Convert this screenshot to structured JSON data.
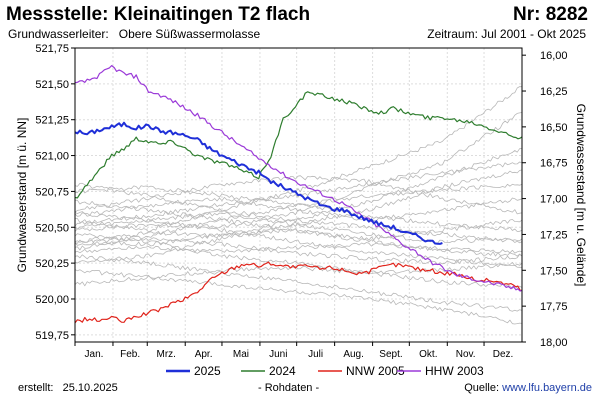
{
  "header": {
    "title": "Messstelle: Kleinaitingen T2 flach",
    "number": "Nr: 8282",
    "aquifer_label": "Grundwasserleiter:",
    "aquifer_value": "Obere Süßwassermolasse",
    "period": "Zeitraum: Jul 2001 - Okt 2025"
  },
  "footer": {
    "created_label": "erstellt:",
    "created_date": "25.10.2025",
    "data_note": "- Rohdaten -",
    "source_label": "Quelle:",
    "source_url": "www.lfu.bayern.de"
  },
  "colors": {
    "y2025": "#1f2fd8",
    "y2024": "#2e7d2e",
    "nnw": "#e0231b",
    "hhw": "#9b3ad8",
    "history": "#b8b8b8",
    "grid": "#dddddd"
  },
  "chart_data": {
    "type": "line",
    "xlabel": "",
    "ylabel": "Grundwasserstand [m ü. NN]",
    "ylabel_right": "Grundwasserstand [m u. Gelände]",
    "xlim": [
      0,
      365
    ],
    "ylim": [
      519.7,
      521.75
    ],
    "ylim_right": [
      18.0,
      15.95
    ],
    "yticks": [
      519.75,
      520.0,
      520.25,
      520.5,
      520.75,
      521.0,
      521.25,
      521.5,
      521.75
    ],
    "ytick_labels": [
      "519,75",
      "520,00",
      "520,25",
      "520,50",
      "520,75",
      "521,00",
      "521,25",
      "521,50",
      "521,75"
    ],
    "yticks_right": [
      16.0,
      16.25,
      16.5,
      16.75,
      17.0,
      17.25,
      17.5,
      17.75,
      18.0
    ],
    "ytick_right_labels": [
      "16,00",
      "16,25",
      "16,50",
      "16,75",
      "17,00",
      "17,25",
      "17,50",
      "17,75",
      "18,00"
    ],
    "month_labels": [
      "Jan.",
      "Feb.",
      "Mrz.",
      "Apr.",
      "Mai",
      "Juni",
      "Juli",
      "Aug.",
      "Sept.",
      "Okt.",
      "Nov.",
      "Dez."
    ],
    "grid": true,
    "legend_position": "bottom",
    "series": [
      {
        "name": "2025",
        "color_key": "y2025",
        "x": [
          0,
          10,
          20,
          30,
          40,
          50,
          60,
          70,
          80,
          90,
          100,
          110,
          120,
          130,
          140,
          150,
          160,
          170,
          180,
          190,
          200,
          210,
          220,
          230,
          240,
          250,
          260,
          270,
          280,
          290,
          300
        ],
        "y": [
          521.17,
          521.15,
          521.18,
          521.2,
          521.22,
          521.19,
          521.21,
          521.17,
          521.16,
          521.14,
          521.11,
          521.05,
          521.0,
          520.96,
          520.92,
          520.88,
          520.82,
          520.78,
          520.74,
          520.7,
          520.66,
          520.63,
          520.62,
          520.58,
          520.55,
          520.52,
          520.5,
          520.46,
          520.44,
          520.4,
          520.39
        ]
      },
      {
        "name": "2024",
        "color_key": "y2024",
        "x": [
          0,
          10,
          20,
          30,
          40,
          50,
          60,
          70,
          80,
          90,
          100,
          110,
          120,
          130,
          140,
          150,
          160,
          170,
          180,
          190,
          200,
          210,
          220,
          230,
          240,
          250,
          260,
          270,
          280,
          290,
          300,
          310,
          320,
          330,
          340,
          350,
          360,
          365
        ],
        "y": [
          520.7,
          520.8,
          520.9,
          521.0,
          521.05,
          521.12,
          521.1,
          521.08,
          521.1,
          521.05,
          521.0,
          520.97,
          520.95,
          520.92,
          520.88,
          520.85,
          521.0,
          521.25,
          521.35,
          521.44,
          521.42,
          521.4,
          521.38,
          521.35,
          521.32,
          521.3,
          521.33,
          521.3,
          521.28,
          521.26,
          521.27,
          521.25,
          521.24,
          521.22,
          521.19,
          521.16,
          521.13,
          521.13
        ]
      },
      {
        "name": "NNW 2005",
        "color_key": "nnw",
        "x": [
          0,
          10,
          20,
          30,
          40,
          50,
          60,
          70,
          80,
          90,
          100,
          110,
          120,
          130,
          140,
          150,
          160,
          170,
          180,
          190,
          200,
          210,
          220,
          230,
          240,
          250,
          260,
          270,
          280,
          290,
          300,
          310,
          320,
          330,
          340,
          350,
          360,
          365
        ],
        "y": [
          519.84,
          519.86,
          519.85,
          519.87,
          519.84,
          519.88,
          519.9,
          519.93,
          519.97,
          520.0,
          520.05,
          520.13,
          520.18,
          520.22,
          520.25,
          520.23,
          520.25,
          520.23,
          520.22,
          520.23,
          520.21,
          520.22,
          520.2,
          520.18,
          520.19,
          520.22,
          520.24,
          520.23,
          520.21,
          520.2,
          520.18,
          520.18,
          520.15,
          520.13,
          520.13,
          520.11,
          520.09,
          520.06
        ]
      },
      {
        "name": "HHW 2003",
        "color_key": "hhw",
        "x": [
          0,
          10,
          20,
          30,
          40,
          50,
          60,
          70,
          80,
          90,
          100,
          110,
          120,
          130,
          140,
          150,
          160,
          170,
          180,
          190,
          200,
          210,
          220,
          230,
          240,
          250,
          260,
          270,
          280,
          290,
          300,
          310,
          320,
          330,
          340,
          350,
          360,
          365
        ],
        "y": [
          521.5,
          521.52,
          521.56,
          521.62,
          521.57,
          521.55,
          521.45,
          521.42,
          521.38,
          521.33,
          521.28,
          521.22,
          521.16,
          521.1,
          521.04,
          520.98,
          520.93,
          520.87,
          520.82,
          520.78,
          520.74,
          520.7,
          520.66,
          520.6,
          520.55,
          520.49,
          520.43,
          520.37,
          520.32,
          520.26,
          520.22,
          520.17,
          520.15,
          520.13,
          520.11,
          520.09,
          520.07,
          520.06
        ]
      }
    ],
    "history_series": [
      {
        "x": [
          0,
          60,
          120,
          180,
          240,
          300,
          365
        ],
        "y": [
          520.55,
          520.48,
          520.62,
          520.75,
          520.92,
          521.1,
          521.48
        ]
      },
      {
        "x": [
          0,
          60,
          120,
          180,
          240,
          300,
          365
        ],
        "y": [
          520.48,
          520.52,
          520.5,
          520.6,
          520.78,
          520.95,
          521.3
        ]
      },
      {
        "x": [
          0,
          60,
          120,
          180,
          240,
          300,
          365
        ],
        "y": [
          520.4,
          520.46,
          520.44,
          520.55,
          520.68,
          520.85,
          521.05
        ]
      },
      {
        "x": [
          0,
          60,
          120,
          180,
          240,
          300,
          365
        ],
        "y": [
          520.25,
          520.3,
          520.42,
          520.52,
          520.62,
          520.78,
          520.9
        ]
      },
      {
        "x": [
          0,
          60,
          120,
          180,
          240,
          300,
          365
        ],
        "y": [
          520.62,
          520.7,
          520.8,
          520.85,
          520.82,
          520.7,
          520.6
        ]
      },
      {
        "x": [
          0,
          60,
          120,
          180,
          240,
          300,
          365
        ],
        "y": [
          520.75,
          520.78,
          520.72,
          520.66,
          520.58,
          520.52,
          520.48
        ]
      },
      {
        "x": [
          0,
          60,
          120,
          180,
          240,
          300,
          365
        ],
        "y": [
          520.5,
          520.55,
          520.6,
          520.52,
          520.45,
          520.4,
          520.42
        ]
      },
      {
        "x": [
          0,
          60,
          120,
          180,
          240,
          300,
          365
        ],
        "y": [
          520.35,
          520.42,
          520.38,
          520.32,
          520.28,
          520.25,
          520.3
        ]
      },
      {
        "x": [
          0,
          60,
          120,
          180,
          240,
          300,
          365
        ],
        "y": [
          520.45,
          520.4,
          520.3,
          520.25,
          520.18,
          520.12,
          520.08
        ]
      },
      {
        "x": [
          0,
          60,
          120,
          180,
          240,
          300,
          365
        ],
        "y": [
          520.3,
          520.25,
          520.18,
          520.12,
          520.05,
          519.98,
          519.92
        ]
      },
      {
        "x": [
          0,
          60,
          120,
          180,
          240,
          300,
          365
        ],
        "y": [
          520.2,
          520.15,
          520.1,
          520.05,
          520.0,
          519.93,
          519.83
        ]
      },
      {
        "x": [
          0,
          60,
          120,
          180,
          240,
          300,
          365
        ],
        "y": [
          520.58,
          520.65,
          520.7,
          520.62,
          520.55,
          520.62,
          520.7
        ]
      },
      {
        "x": [
          0,
          60,
          120,
          180,
          240,
          300,
          365
        ],
        "y": [
          520.4,
          520.38,
          520.45,
          520.48,
          520.42,
          520.48,
          520.55
        ]
      },
      {
        "x": [
          0,
          60,
          120,
          180,
          240,
          300,
          365
        ],
        "y": [
          520.1,
          520.15,
          520.2,
          520.22,
          520.18,
          520.2,
          520.25
        ]
      },
      {
        "x": [
          0,
          60,
          120,
          180,
          240,
          300,
          365
        ],
        "y": [
          520.68,
          520.62,
          520.55,
          520.48,
          520.4,
          520.34,
          520.3
        ]
      },
      {
        "x": [
          0,
          60,
          120,
          180,
          240,
          300,
          365
        ],
        "y": [
          520.52,
          520.58,
          520.66,
          520.72,
          520.8,
          520.88,
          520.95
        ]
      },
      {
        "x": [
          0,
          60,
          120,
          180,
          240,
          300,
          365
        ],
        "y": [
          520.33,
          520.36,
          520.33,
          520.36,
          520.38,
          520.35,
          520.33
        ]
      },
      {
        "x": [
          0,
          60,
          120,
          180,
          240,
          300,
          365
        ],
        "y": [
          520.6,
          520.55,
          520.48,
          520.4,
          520.33,
          520.28,
          520.22
        ]
      },
      {
        "x": [
          0,
          60,
          120,
          180,
          240,
          300,
          365
        ],
        "y": [
          520.38,
          520.44,
          520.55,
          520.65,
          520.72,
          520.76,
          520.8
        ]
      },
      {
        "x": [
          0,
          60,
          120,
          180,
          240,
          300,
          365
        ],
        "y": [
          520.8,
          520.72,
          520.62,
          520.55,
          520.5,
          520.45,
          520.4
        ]
      }
    ]
  }
}
